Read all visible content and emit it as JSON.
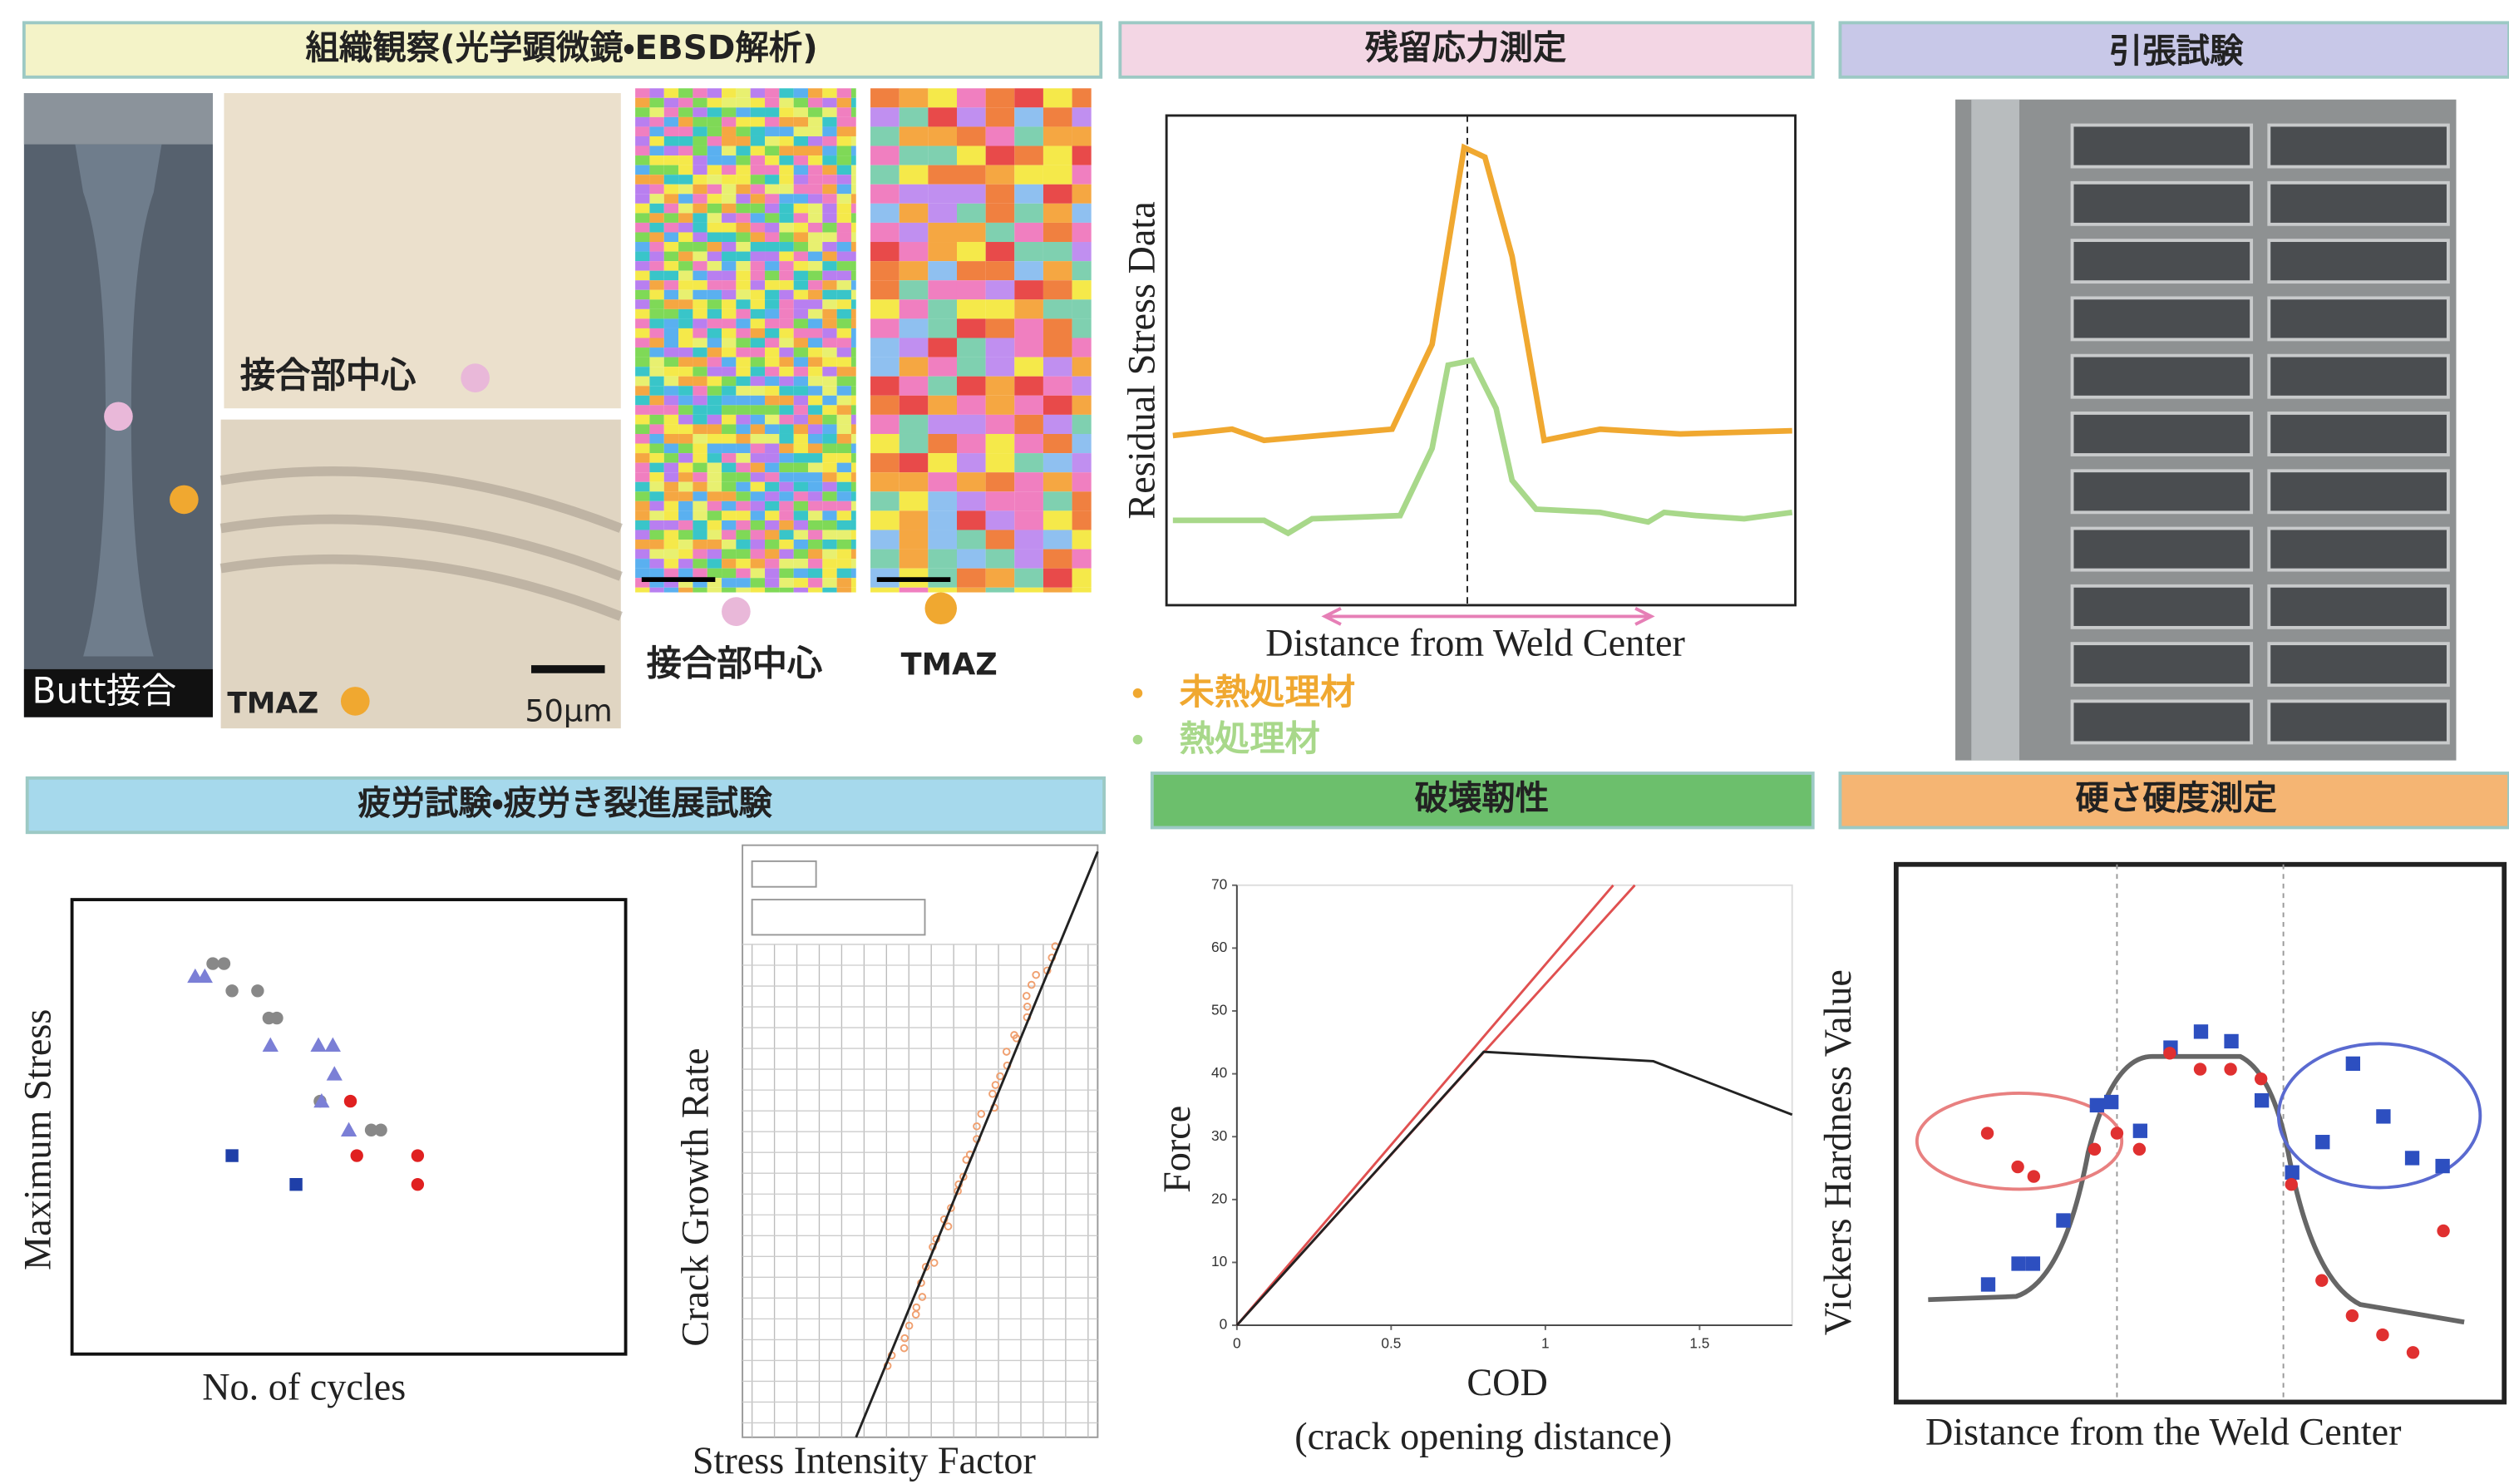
{
  "structure_panel": {
    "title": "組織観察(光学顕微鏡・EBSD解析)",
    "butt_label": "Butt接合",
    "center_label": "接合部中心",
    "tmaz_label": "TMAZ",
    "scale_label": "50μm",
    "ebsd_center_label": "接合部中心",
    "ebsd_tmaz_label": "TMAZ"
  },
  "residual_panel": {
    "title": "残留応力測定",
    "y_label": "Residual Stress  Data",
    "x_label": "Distance from Weld Center",
    "legend": [
      "未熱処理材",
      "熱処理材"
    ]
  },
  "tensile_panel": {
    "title": "引張試験"
  },
  "fatigue_panel": {
    "title": "疲労試験・疲労き裂進展試験",
    "sn_y_label": "Maximum Stress",
    "sn_x_label": "No. of cycles",
    "crack_y_label": "Crack Growth Rate",
    "crack_x_label": "Stress Intensity Factor"
  },
  "fracture_panel": {
    "title": "破壊靭性"
  },
  "chart_data": {
    "type": "line",
    "y_label": "Force",
    "x_label": "COD",
    "x_label_note": "(crack opening distance)",
    "xlim": [
      0,
      1.8
    ],
    "ylim": [
      0,
      70
    ],
    "xticks": [
      0,
      0.5,
      1,
      1.5
    ],
    "yticks": [
      0,
      10,
      20,
      30,
      40,
      50,
      60,
      70
    ],
    "series": [
      {
        "color": "#e05050",
        "x": [
          0,
          1.22
        ],
        "values": [
          0,
          70
        ]
      },
      {
        "color": "#e05050",
        "x": [
          0,
          1.29
        ],
        "values": [
          0,
          70
        ]
      },
      {
        "color": "#222222",
        "x": [
          0,
          0.8,
          1.35,
          1.8
        ],
        "values": [
          0,
          43.5,
          42,
          33.5
        ]
      }
    ]
  },
  "hardness_panel": {
    "title": "硬さ硬度測定",
    "y_label": "Vickers Hardness Value",
    "x_label": "Distance from the Weld Center"
  }
}
